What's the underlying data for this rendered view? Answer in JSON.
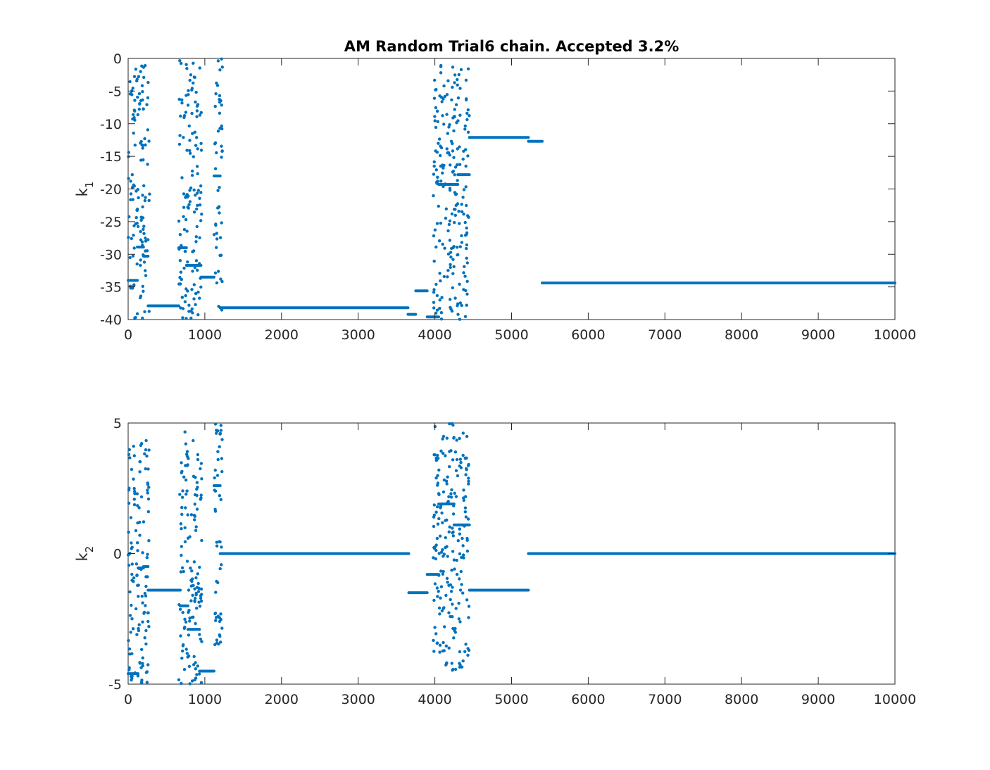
{
  "chart_data": [
    {
      "type": "scatter",
      "title": "AM Random Trial6 chain. Accepted 3.2%",
      "ylabel_main": "k",
      "ylabel_sub": "1",
      "xlim": [
        0,
        10000
      ],
      "ylim": [
        -40,
        0
      ],
      "xticks": [
        "0",
        "1000",
        "2000",
        "3000",
        "4000",
        "5000",
        "6000",
        "7000",
        "8000",
        "9000",
        "10000"
      ],
      "yticks": [
        "0",
        "-5",
        "-10",
        "-15",
        "-20",
        "-25",
        "-30",
        "-35",
        "-40"
      ],
      "grid": false,
      "color": "#0072BD",
      "segments": [
        {
          "x": [
            0,
            120
          ],
          "y": -34.0
        },
        {
          "x": [
            120,
            200
          ],
          "y": -28.9
        },
        {
          "x": [
            200,
            260
          ],
          "y": -30.3
        },
        {
          "x": [
            260,
            660
          ],
          "y": -37.9
        },
        {
          "x": [
            660,
            760
          ],
          "y": -29.0
        },
        {
          "x": [
            760,
            950
          ],
          "y": -31.7
        },
        {
          "x": [
            950,
            1120
          ],
          "y": -33.5
        },
        {
          "x": [
            1120,
            1200
          ],
          "y": -18.0
        },
        {
          "x": [
            1200,
            3650
          ],
          "y": -38.2
        },
        {
          "x": [
            3650,
            3750
          ],
          "y": -39.2
        },
        {
          "x": [
            3750,
            3900
          ],
          "y": -35.6
        },
        {
          "x": [
            3900,
            4050
          ],
          "y": -39.6
        },
        {
          "x": [
            4050,
            4300
          ],
          "y": -19.3
        },
        {
          "x": [
            4300,
            4450
          ],
          "y": -17.8
        },
        {
          "x": [
            4450,
            5220
          ],
          "y": -12.1
        },
        {
          "x": [
            5220,
            5400
          ],
          "y": -12.7
        },
        {
          "x": [
            5400,
            10000
          ],
          "y": -34.4
        }
      ],
      "scattered_regions": [
        {
          "x": [
            0,
            280
          ],
          "y": [
            -40,
            -1
          ]
        },
        {
          "x": [
            660,
            960
          ],
          "y": [
            -40,
            0
          ]
        },
        {
          "x": [
            1120,
            1230
          ],
          "y": [
            -39,
            0
          ]
        },
        {
          "x": [
            3980,
            4450
          ],
          "y": [
            -40,
            0
          ]
        }
      ]
    },
    {
      "type": "scatter",
      "title": "",
      "ylabel_main": "k",
      "ylabel_sub": "2",
      "xlim": [
        0,
        10000
      ],
      "ylim": [
        -5,
        5
      ],
      "xticks": [
        "0",
        "1000",
        "2000",
        "3000",
        "4000",
        "5000",
        "6000",
        "7000",
        "8000",
        "9000",
        "10000"
      ],
      "yticks": [
        "5",
        "0",
        "-5"
      ],
      "grid": false,
      "color": "#0072BD",
      "segments": [
        {
          "x": [
            0,
            130
          ],
          "y": -4.6
        },
        {
          "x": [
            130,
            200
          ],
          "y": -0.55
        },
        {
          "x": [
            200,
            260
          ],
          "y": -0.5
        },
        {
          "x": [
            260,
            680
          ],
          "y": -1.4
        },
        {
          "x": [
            680,
            780
          ],
          "y": -2.0
        },
        {
          "x": [
            780,
            930
          ],
          "y": -2.9
        },
        {
          "x": [
            930,
            1120
          ],
          "y": -4.5
        },
        {
          "x": [
            1120,
            1200
          ],
          "y": 2.6
        },
        {
          "x": [
            1200,
            3660
          ],
          "y": 0.0
        },
        {
          "x": [
            3660,
            3900
          ],
          "y": -1.5
        },
        {
          "x": [
            3900,
            4050
          ],
          "y": -0.8
        },
        {
          "x": [
            4050,
            4250
          ],
          "y": 1.9
        },
        {
          "x": [
            4250,
            4450
          ],
          "y": 1.1
        },
        {
          "x": [
            4450,
            5220
          ],
          "y": -1.4
        },
        {
          "x": [
            5220,
            10000
          ],
          "y": 0.0
        }
      ],
      "scattered_regions": [
        {
          "x": [
            0,
            280
          ],
          "y": [
            -5,
            4.5
          ]
        },
        {
          "x": [
            660,
            960
          ],
          "y": [
            -5,
            4.7
          ]
        },
        {
          "x": [
            1120,
            1230
          ],
          "y": [
            -3.5,
            5
          ]
        },
        {
          "x": [
            3980,
            4450
          ],
          "y": [
            -4.6,
            5
          ]
        }
      ]
    }
  ]
}
